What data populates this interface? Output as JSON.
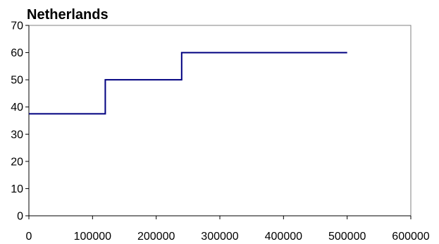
{
  "chart_data": {
    "type": "line",
    "title": "Netherlands",
    "xlabel": "",
    "ylabel": "",
    "xlim": [
      0,
      600000
    ],
    "ylim": [
      0,
      70
    ],
    "x_ticks": [
      0,
      100000,
      200000,
      300000,
      400000,
      500000,
      600000
    ],
    "y_ticks": [
      0,
      10,
      20,
      30,
      40,
      50,
      60,
      70
    ],
    "grid": false,
    "legend": "none",
    "line_color": "#000080",
    "series": [
      {
        "step": true,
        "points": [
          {
            "x": 0,
            "y": 37.5
          },
          {
            "x": 120000,
            "y": 37.5
          },
          {
            "x": 120000,
            "y": 50
          },
          {
            "x": 240000,
            "y": 50
          },
          {
            "x": 240000,
            "y": 60
          },
          {
            "x": 500000,
            "y": 60
          }
        ]
      }
    ]
  }
}
